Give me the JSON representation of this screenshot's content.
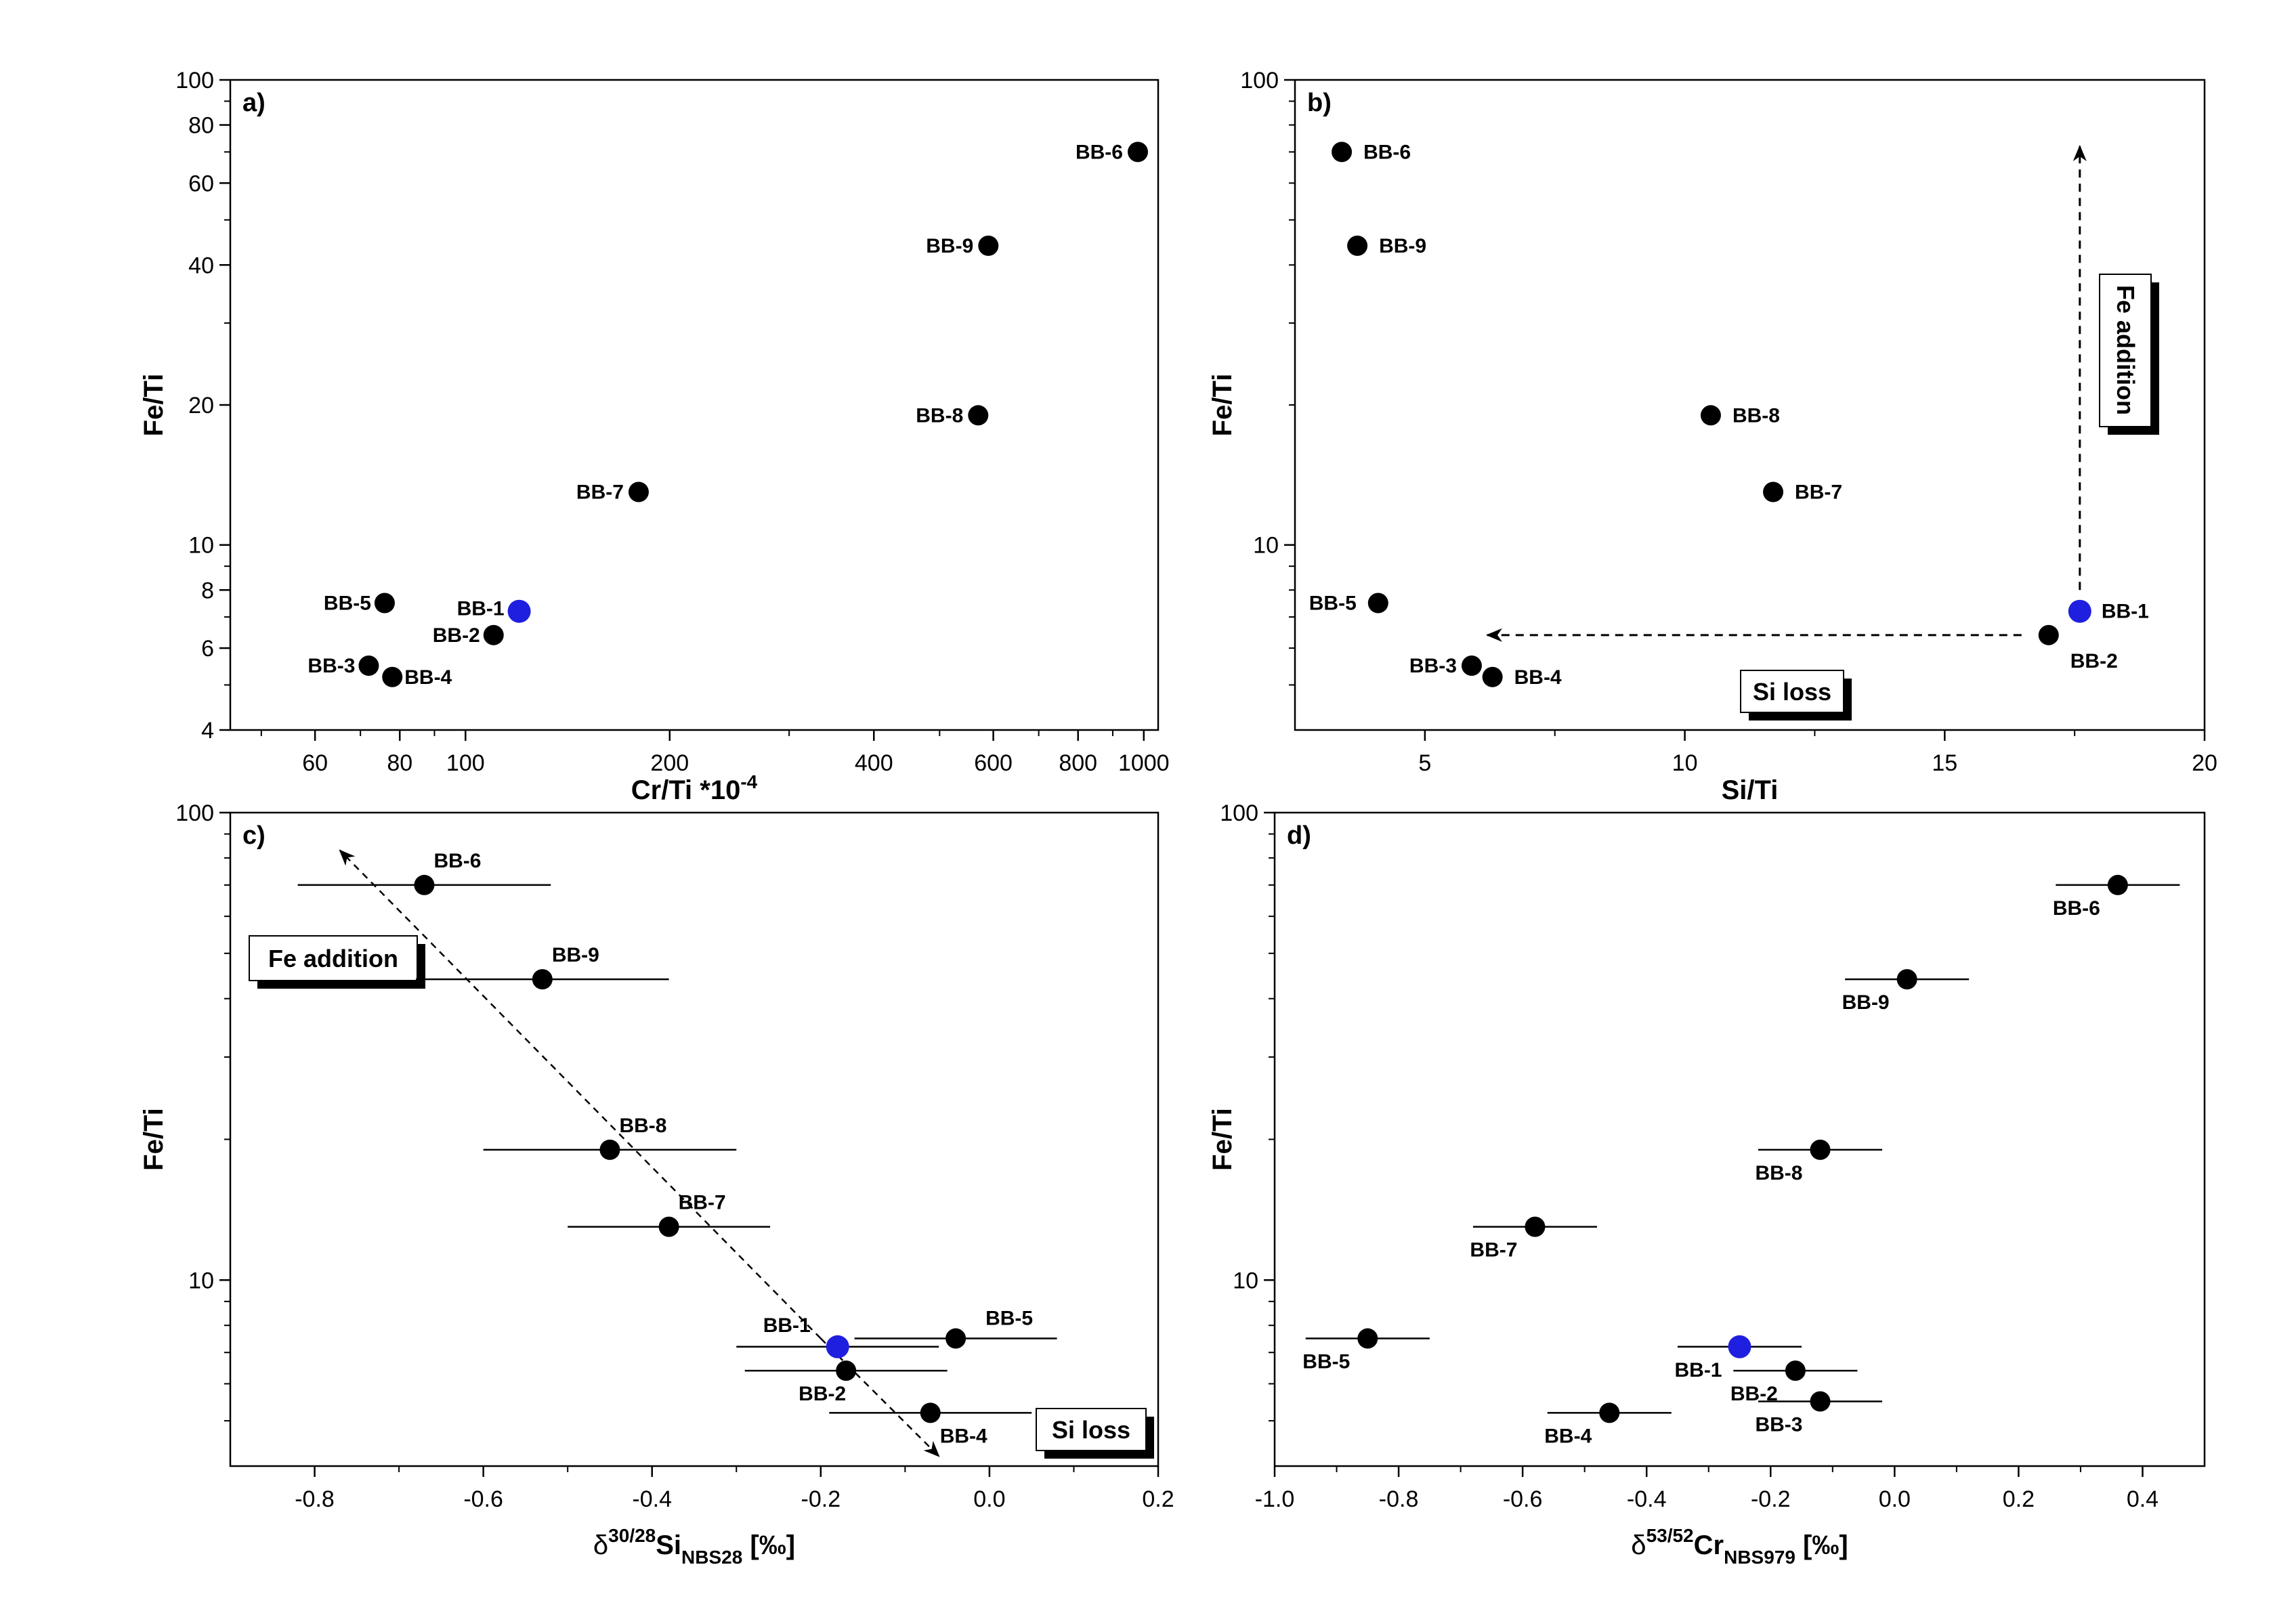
{
  "chart_data": [
    {
      "type": "scatter",
      "panel": "a)",
      "xlabel": "Cr/Ti *10",
      "xlabel_sup": "-4",
      "ylabel": "Fe/Ti",
      "xscale": "log",
      "yscale": "log",
      "xlim": [
        45,
        1050
      ],
      "ylim": [
        4,
        100
      ],
      "xticks": [
        60,
        80,
        100,
        200,
        400,
        600,
        800,
        1000
      ],
      "yticks": [
        4,
        6,
        8,
        10,
        20,
        40,
        60,
        80,
        100
      ],
      "colors": {
        "sample": "#000000",
        "highlight": "#1f1fe0"
      },
      "points": [
        {
          "label": "BB-6",
          "x": 980,
          "y": 70
        },
        {
          "label": "BB-9",
          "x": 590,
          "y": 44
        },
        {
          "label": "BB-8",
          "x": 570,
          "y": 19
        },
        {
          "label": "BB-7",
          "x": 180,
          "y": 13
        },
        {
          "label": "BB-5",
          "x": 76,
          "y": 7.5
        },
        {
          "label": "BB-1",
          "x": 120,
          "y": 7.2,
          "highlight": true
        },
        {
          "label": "BB-2",
          "x": 110,
          "y": 6.4
        },
        {
          "label": "BB-3",
          "x": 72,
          "y": 5.5
        },
        {
          "label": "BB-4",
          "x": 78,
          "y": 5.2
        }
      ]
    },
    {
      "type": "scatter",
      "panel": "b)",
      "xlabel": "Si/Ti",
      "ylabel": "Fe/Ti",
      "xscale": "linear",
      "yscale": "log",
      "xlim": [
        2.5,
        20
      ],
      "ylim": [
        4,
        100
      ],
      "xticks": [
        5,
        10,
        15,
        20
      ],
      "yticks": [
        10,
        100
      ],
      "colors": {
        "sample": "#000000",
        "highlight": "#1f1fe0"
      },
      "points": [
        {
          "label": "BB-6",
          "x": 3.4,
          "y": 70
        },
        {
          "label": "BB-9",
          "x": 3.7,
          "y": 44
        },
        {
          "label": "BB-8",
          "x": 10.5,
          "y": 19
        },
        {
          "label": "BB-7",
          "x": 11.7,
          "y": 13
        },
        {
          "label": "BB-5",
          "x": 4.1,
          "y": 7.5
        },
        {
          "label": "BB-1",
          "x": 17.6,
          "y": 7.2,
          "highlight": true
        },
        {
          "label": "BB-2",
          "x": 17.0,
          "y": 6.4
        },
        {
          "label": "BB-3",
          "x": 5.9,
          "y": 5.5
        },
        {
          "label": "BB-4",
          "x": 6.3,
          "y": 5.2
        }
      ],
      "annotations": [
        {
          "text": "Fe addition",
          "arrow_from": [
            17.6,
            8.0
          ],
          "arrow_to": [
            17.6,
            72
          ]
        },
        {
          "text": "Si loss",
          "arrow_from": [
            17.0,
            6.4
          ],
          "arrow_to": [
            6.2,
            6.4
          ]
        }
      ]
    },
    {
      "type": "scatter",
      "panel": "c)",
      "xlabel": "δ",
      "xlabel_sup": "30/28",
      "xlabel_main": "Si",
      "xlabel_sub": "NBS28",
      "xlabel_unit": " [‰]",
      "ylabel": "Fe/Ti",
      "xscale": "linear",
      "yscale": "log",
      "xlim": [
        -0.9,
        0.2
      ],
      "ylim": [
        4,
        100
      ],
      "xticks": [
        -0.8,
        -0.6,
        -0.4,
        -0.2,
        0.0,
        0.2
      ],
      "xtick_labels": [
        "-0.8",
        "-0.6",
        "-0.4",
        "-0.2",
        "0.0",
        "0.2"
      ],
      "yticks": [
        10,
        100
      ],
      "colors": {
        "sample": "#000000",
        "highlight": "#1f1fe0"
      },
      "points": [
        {
          "label": "BB-6",
          "x": -0.67,
          "y": 70,
          "xerr": 0.15
        },
        {
          "label": "BB-9",
          "x": -0.53,
          "y": 44,
          "xerr": 0.15
        },
        {
          "label": "BB-8",
          "x": -0.45,
          "y": 19,
          "xerr": 0.15
        },
        {
          "label": "BB-7",
          "x": -0.38,
          "y": 13,
          "xerr": 0.12
        },
        {
          "label": "BB-5",
          "x": -0.04,
          "y": 7.5,
          "xerr": 0.12
        },
        {
          "label": "BB-1",
          "x": -0.18,
          "y": 7.2,
          "xerr": 0.12,
          "highlight": true
        },
        {
          "label": "BB-2",
          "x": -0.17,
          "y": 6.4,
          "xerr": 0.12
        },
        {
          "label": "BB-4",
          "x": -0.07,
          "y": 5.2,
          "xerr": 0.12
        }
      ],
      "annotations": [
        {
          "text": "Fe addition",
          "arrow_from": [
            -0.2,
            7.5
          ],
          "arrow_to": [
            -0.77,
            83
          ]
        },
        {
          "text": "Si loss",
          "arrow_from": [
            -0.2,
            7.5
          ],
          "arrow_to": [
            -0.06,
            4.2
          ]
        }
      ]
    },
    {
      "type": "scatter",
      "panel": "d)",
      "xlabel": "δ",
      "xlabel_sup": "53/52",
      "xlabel_main": "Cr",
      "xlabel_sub": "NBS979",
      "xlabel_unit": " [‰]",
      "ylabel": "Fe/Ti",
      "xscale": "linear",
      "yscale": "log",
      "xlim": [
        -1.0,
        0.5
      ],
      "ylim": [
        4,
        100
      ],
      "xticks": [
        -1.0,
        -0.8,
        -0.6,
        -0.4,
        -0.2,
        0.0,
        0.2,
        0.4
      ],
      "xtick_labels": [
        "-1.0",
        "-0.8",
        "-0.6",
        "-0.4",
        "-0.2",
        "0.0",
        "0.2",
        "0.4"
      ],
      "yticks": [
        10,
        100
      ],
      "colors": {
        "sample": "#000000",
        "highlight": "#1f1fe0"
      },
      "points": [
        {
          "label": "BB-6",
          "x": 0.36,
          "y": 70,
          "xerr": 0.1
        },
        {
          "label": "BB-9",
          "x": 0.02,
          "y": 44,
          "xerr": 0.1
        },
        {
          "label": "BB-8",
          "x": -0.12,
          "y": 19,
          "xerr": 0.1
        },
        {
          "label": "BB-7",
          "x": -0.58,
          "y": 13,
          "xerr": 0.1
        },
        {
          "label": "BB-5",
          "x": -0.85,
          "y": 7.5,
          "xerr": 0.1
        },
        {
          "label": "BB-1",
          "x": -0.25,
          "y": 7.2,
          "xerr": 0.1,
          "highlight": true
        },
        {
          "label": "BB-2",
          "x": -0.16,
          "y": 6.4,
          "xerr": 0.1
        },
        {
          "label": "BB-3",
          "x": -0.12,
          "y": 5.5,
          "xerr": 0.1
        },
        {
          "label": "BB-4",
          "x": -0.46,
          "y": 5.2,
          "xerr": 0.1
        }
      ]
    }
  ]
}
